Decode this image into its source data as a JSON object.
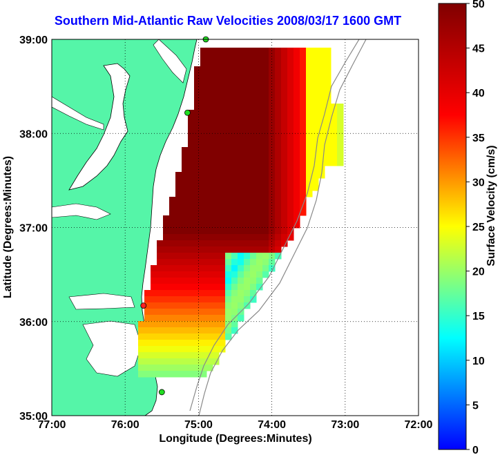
{
  "title": "Southern Mid-Atlantic Raw Velocities 2008/03/17 1600 GMT",
  "xlabel": "Longitude (Degrees:Minutes)",
  "ylabel": "Latitude (Degrees:Minutes)",
  "colorbar_label": "Surface Velocity (cm/s)",
  "x_ticks": [
    "77:00",
    "76:00",
    "75:00",
    "74:00",
    "73:00",
    "72:00"
  ],
  "y_ticks": [
    "39:00",
    "38:00",
    "37:00",
    "36:00",
    "35:00"
  ],
  "colorbar_ticks": [
    "50",
    "45",
    "40",
    "35",
    "30",
    "25",
    "20",
    "15",
    "10",
    "5",
    "0"
  ],
  "colors": {
    "land": "#55f5a8",
    "title": "#0000ff",
    "grid": "#000000"
  },
  "map": {
    "lon_range": [
      -77,
      -72
    ],
    "lat_range": [
      35,
      39
    ],
    "colorbar_range": [
      0,
      50
    ],
    "stations": [
      {
        "lon": -74.9,
        "lat": 39.0
      },
      {
        "lon": -75.15,
        "lat": 38.22
      },
      {
        "lon": -75.75,
        "lat": 36.17
      },
      {
        "lon": -75.5,
        "lat": 35.25
      }
    ]
  }
}
